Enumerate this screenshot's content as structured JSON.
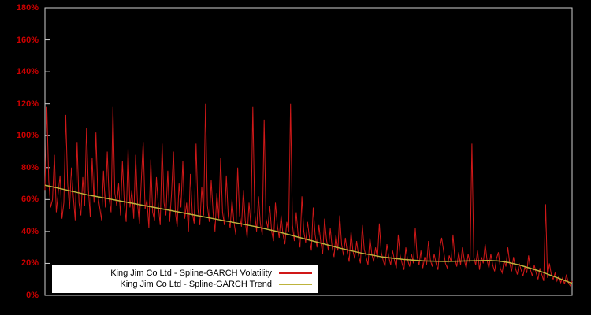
{
  "chart_data": {
    "type": "line",
    "title": "",
    "xlabel": "",
    "ylabel": "",
    "ylim": [
      0,
      180
    ],
    "grid": false,
    "legend_position": "bottom-left",
    "background_color": "#000000",
    "plot_border_color": "#d0d0d0",
    "axis_label_color": "#cc0000",
    "y_ticks": {
      "labels": [
        "0%",
        "20%",
        "40%",
        "60%",
        "80%",
        "100%",
        "120%",
        "140%",
        "160%",
        "180%"
      ],
      "values": [
        0,
        20,
        40,
        60,
        80,
        100,
        120,
        140,
        160,
        180
      ]
    },
    "unit": "percent",
    "series": [
      {
        "name": "King Jim Co Ltd - Spline-GARCH Volatility",
        "color": "#d01818",
        "values": [
          66,
          118,
          72,
          55,
          60,
          88,
          52,
          64,
          75,
          48,
          58,
          113,
          70,
          54,
          80,
          62,
          47,
          96,
          58,
          50,
          74,
          56,
          105,
          66,
          49,
          86,
          58,
          102,
          63,
          55,
          47,
          78,
          55,
          90,
          60,
          52,
          118,
          64,
          56,
          70,
          50,
          84,
          58,
          46,
          92,
          55,
          66,
          48,
          88,
          57,
          45,
          72,
          96,
          54,
          60,
          42,
          85,
          52,
          47,
          74,
          56,
          44,
          95,
          58,
          50,
          78,
          46,
          64,
          90,
          52,
          43,
          70,
          55,
          84,
          48,
          58,
          40,
          76,
          52,
          45,
          95,
          54,
          44,
          68,
          50,
          120,
          56,
          46,
          72,
          52,
          40,
          64,
          48,
          86,
          52,
          44,
          75,
          50,
          42,
          60,
          46,
          38,
          80,
          50,
          43,
          66,
          47,
          36,
          58,
          44,
          118,
          52,
          40,
          62,
          45,
          38,
          110,
          48,
          42,
          56,
          40,
          34,
          58,
          44,
          36,
          50,
          38,
          32,
          46,
          40,
          120,
          44,
          34,
          52,
          38,
          30,
          62,
          40,
          33,
          46,
          36,
          28,
          55,
          38,
          30,
          44,
          33,
          26,
          48,
          35,
          28,
          42,
          30,
          24,
          38,
          28,
          50,
          32,
          25,
          36,
          27,
          21,
          40,
          28,
          23,
          34,
          25,
          20,
          44,
          29,
          24,
          19,
          36,
          26,
          21,
          30,
          23,
          45,
          27,
          22,
          18,
          32,
          24,
          19,
          28,
          22,
          17,
          38,
          25,
          20,
          16,
          30,
          22,
          18,
          26,
          20,
          42,
          24,
          19,
          28,
          17,
          24,
          19,
          34,
          22,
          18,
          26,
          20,
          16,
          30,
          36,
          28,
          20,
          17,
          25,
          21,
          38,
          23,
          18,
          27,
          19,
          30,
          22,
          17,
          26,
          20,
          95,
          24,
          19,
          28,
          16,
          24,
          20,
          32,
          22,
          17,
          26,
          19,
          15,
          23,
          27,
          17,
          14,
          22,
          18,
          30,
          20,
          15,
          24,
          17,
          13,
          20,
          16,
          12,
          18,
          14,
          25,
          16,
          12,
          19,
          14,
          10,
          17,
          13,
          9,
          57,
          11,
          20,
          13,
          10,
          14,
          9,
          12,
          8,
          11,
          7,
          13,
          8,
          6,
          9
        ]
      },
      {
        "name": "King Jim Co Ltd - Spline-GARCH Trend",
        "color": "#bdb33c",
        "points": [
          [
            0,
            69
          ],
          [
            0.04,
            66
          ],
          [
            0.08,
            63
          ],
          [
            0.12,
            60.5
          ],
          [
            0.16,
            58
          ],
          [
            0.2,
            55.5
          ],
          [
            0.24,
            53
          ],
          [
            0.28,
            50.5
          ],
          [
            0.32,
            48
          ],
          [
            0.36,
            45.5
          ],
          [
            0.4,
            43
          ],
          [
            0.44,
            40
          ],
          [
            0.48,
            36.5
          ],
          [
            0.52,
            33
          ],
          [
            0.56,
            29.5
          ],
          [
            0.6,
            26.5
          ],
          [
            0.64,
            24
          ],
          [
            0.68,
            22.5
          ],
          [
            0.72,
            21.5
          ],
          [
            0.76,
            21.2
          ],
          [
            0.8,
            21.5
          ],
          [
            0.84,
            21.8
          ],
          [
            0.86,
            21.5
          ],
          [
            0.88,
            20.5
          ],
          [
            0.9,
            19
          ],
          [
            0.92,
            17
          ],
          [
            0.94,
            15
          ],
          [
            0.96,
            12.5
          ],
          [
            0.98,
            10
          ],
          [
            1.0,
            7.5
          ]
        ]
      }
    ]
  }
}
